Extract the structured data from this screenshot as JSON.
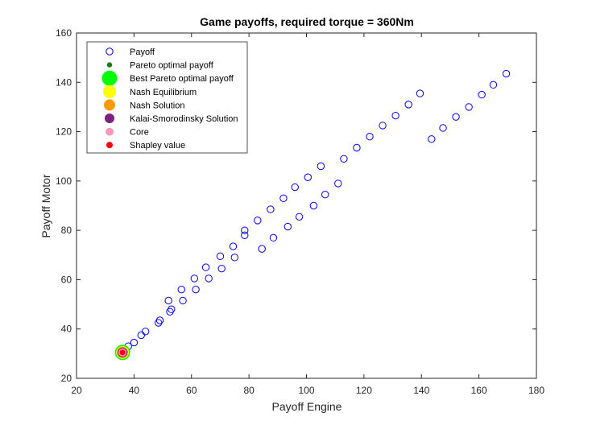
{
  "chart_data": {
    "type": "scatter",
    "title": "Game payoffs, required torque = 360Nm",
    "xlabel": "Payoff Engine",
    "ylabel": "Payoff Motor",
    "xlim": [
      20,
      180
    ],
    "ylim": [
      20,
      160
    ],
    "xticks": [
      20,
      40,
      60,
      80,
      100,
      120,
      140,
      160,
      180
    ],
    "yticks": [
      20,
      40,
      60,
      80,
      100,
      120,
      140,
      160
    ],
    "grid": false,
    "legend_position": "top-left",
    "series": [
      {
        "name": "Payoff",
        "marker": "open-circle",
        "color": "#0000ff",
        "points": [
          [
            36,
            30.5
          ],
          [
            38,
            33
          ],
          [
            40,
            34.5
          ],
          [
            42.5,
            37.5
          ],
          [
            44,
            39
          ],
          [
            48.5,
            42.5
          ],
          [
            49,
            43.5
          ],
          [
            52,
            51.5
          ],
          [
            52.5,
            47
          ],
          [
            53,
            48
          ],
          [
            56.5,
            56
          ],
          [
            57,
            51.5
          ],
          [
            61,
            60.5
          ],
          [
            61.5,
            56
          ],
          [
            65,
            65
          ],
          [
            66,
            60.5
          ],
          [
            70,
            69.5
          ],
          [
            70.5,
            64.5
          ],
          [
            74.5,
            73.5
          ],
          [
            75,
            69
          ],
          [
            78.5,
            80
          ],
          [
            78.5,
            78
          ],
          [
            83,
            84
          ],
          [
            84.5,
            72.5
          ],
          [
            87.5,
            88.5
          ],
          [
            88.5,
            77
          ],
          [
            92,
            93
          ],
          [
            93.5,
            81.5
          ],
          [
            96,
            97.5
          ],
          [
            97.5,
            85.5
          ],
          [
            100.5,
            101.5
          ],
          [
            102.5,
            90
          ],
          [
            105,
            106
          ],
          [
            106.5,
            94.5
          ],
          [
            111,
            99
          ],
          [
            113,
            109
          ],
          [
            117.5,
            113.5
          ],
          [
            122,
            118
          ],
          [
            126.5,
            122.5
          ],
          [
            131,
            126.5
          ],
          [
            135.5,
            131
          ],
          [
            139.5,
            135.5
          ],
          [
            143.5,
            117
          ],
          [
            147.5,
            121.5
          ],
          [
            152,
            126
          ],
          [
            156.5,
            130
          ],
          [
            161,
            135
          ],
          [
            165,
            139
          ],
          [
            169.5,
            143.5
          ]
        ]
      },
      {
        "name": "Pareto optimal payoff",
        "marker": "filled-circle",
        "color": "#1a7a1a",
        "points": [
          [
            36,
            30.5
          ]
        ]
      },
      {
        "name": "Best Pareto optimal payoff",
        "marker": "filled-circle",
        "color": "#00ff00",
        "points": [
          [
            36,
            30.5
          ]
        ]
      },
      {
        "name": "Nash Equilibrium",
        "marker": "filled-circle",
        "color": "#ffff00",
        "points": [
          [
            36,
            30.5
          ]
        ]
      },
      {
        "name": "Nash Solution",
        "marker": "filled-circle",
        "color": "#ff9900",
        "points": [
          [
            36,
            30.5
          ]
        ]
      },
      {
        "name": "Kalai-Smorodinsky Solution",
        "marker": "filled-circle",
        "color": "#7d2181",
        "points": [
          [
            36,
            30.5
          ]
        ]
      },
      {
        "name": "Core",
        "marker": "filled-circle",
        "color": "#ff99bb",
        "points": [
          [
            36,
            30.5
          ]
        ]
      },
      {
        "name": "Shapley value",
        "marker": "filled-circle",
        "color": "#ff0000",
        "points": [
          [
            36,
            30.5
          ]
        ]
      }
    ]
  }
}
